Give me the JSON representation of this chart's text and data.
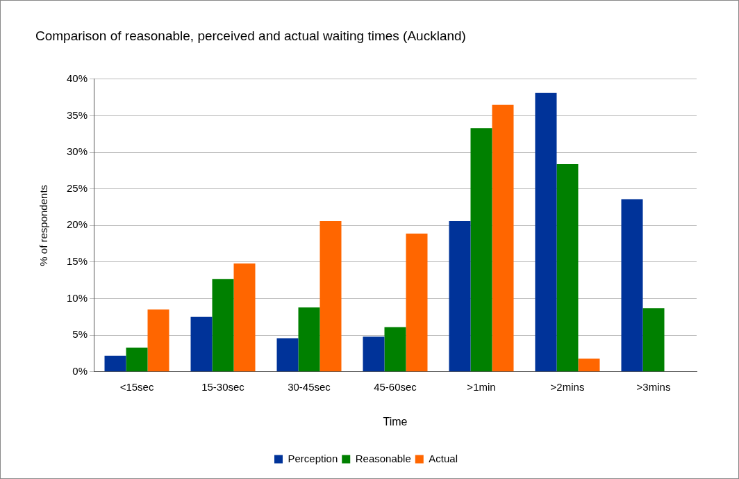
{
  "chart_data": {
    "type": "bar",
    "title": "Comparison of reasonable, perceived and actual waiting times (Auckland)",
    "xlabel": "Time",
    "ylabel": "% of respondents",
    "categories": [
      "<15sec",
      "15-30sec",
      "30-45sec",
      "45-60sec",
      ">1min",
      ">2mins",
      ">3mins"
    ],
    "series": [
      {
        "name": "Perception",
        "color": "#003399",
        "values": [
          2.2,
          7.5,
          4.6,
          4.8,
          20.6,
          38.1,
          23.6
        ]
      },
      {
        "name": "Reasonable",
        "color": "#008000",
        "values": [
          3.3,
          12.7,
          8.8,
          6.1,
          33.3,
          28.4,
          8.7
        ]
      },
      {
        "name": "Actual",
        "color": "#ff6600",
        "values": [
          8.5,
          14.8,
          20.6,
          18.9,
          36.5,
          1.8,
          null
        ]
      }
    ],
    "ylim": [
      0,
      40
    ],
    "yticks": [
      {
        "value": 0,
        "label": "0%"
      },
      {
        "value": 5,
        "label": "5%"
      },
      {
        "value": 10,
        "label": "10%"
      },
      {
        "value": 15,
        "label": "15%"
      },
      {
        "value": 20,
        "label": "20%"
      },
      {
        "value": 25,
        "label": "25%"
      },
      {
        "value": 30,
        "label": "30%"
      },
      {
        "value": 35,
        "label": "35%"
      },
      {
        "value": 40,
        "label": "40%"
      }
    ],
    "grid": "y",
    "legend": "bottom"
  }
}
